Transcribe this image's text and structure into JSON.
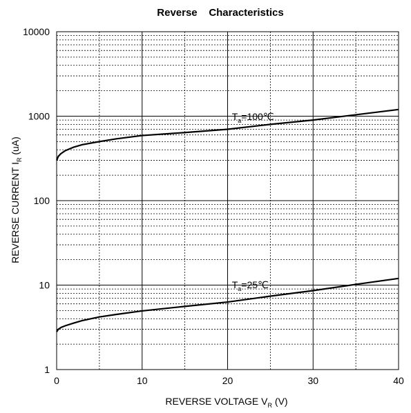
{
  "chart_data": {
    "type": "line",
    "title": "Reverse    Characteristics",
    "xlabel": {
      "main": "REVERSE VOLTAGE V",
      "sub": "R",
      "unit": " (V)"
    },
    "ylabel": {
      "main": "REVERSE CURRENT I",
      "sub": "R",
      "unit": " (uA)"
    },
    "xlim": [
      0,
      40
    ],
    "ylim": [
      1,
      10000
    ],
    "yscale": "log",
    "grid": true,
    "x_ticks": [
      {
        "value": 0,
        "label": "0"
      },
      {
        "value": 10,
        "label": "10"
      },
      {
        "value": 20,
        "label": "20"
      },
      {
        "value": 30,
        "label": "30"
      },
      {
        "value": 40,
        "label": "40"
      }
    ],
    "y_ticks": [
      {
        "value": 1,
        "label": "1"
      },
      {
        "value": 10,
        "label": "10"
      },
      {
        "value": 100,
        "label": "100"
      },
      {
        "value": 1000,
        "label": "1000"
      },
      {
        "value": 10000,
        "label": "10000"
      }
    ],
    "series": [
      {
        "label": {
          "pre": "T",
          "sub": "a",
          "post": "=100℃"
        },
        "label_at": [
          20.5,
          900
        ],
        "x": [
          0,
          0.2,
          0.5,
          1,
          2,
          3,
          5,
          7,
          10,
          15,
          20,
          25,
          30,
          35,
          40
        ],
        "y": [
          300,
          335,
          360,
          390,
          430,
          460,
          500,
          540,
          590,
          640,
          700,
          800,
          900,
          1040,
          1200
        ]
      },
      {
        "label": {
          "pre": "T",
          "sub": "a",
          "post": "=25℃"
        },
        "label_at": [
          20.5,
          9.2
        ],
        "x": [
          0,
          0.2,
          0.5,
          1,
          2,
          3,
          5,
          7,
          10,
          15,
          20,
          25,
          30,
          35,
          40
        ],
        "y": [
          2.8,
          3.0,
          3.15,
          3.3,
          3.55,
          3.8,
          4.2,
          4.5,
          4.95,
          5.6,
          6.3,
          7.4,
          8.6,
          10.2,
          12
        ]
      }
    ]
  }
}
